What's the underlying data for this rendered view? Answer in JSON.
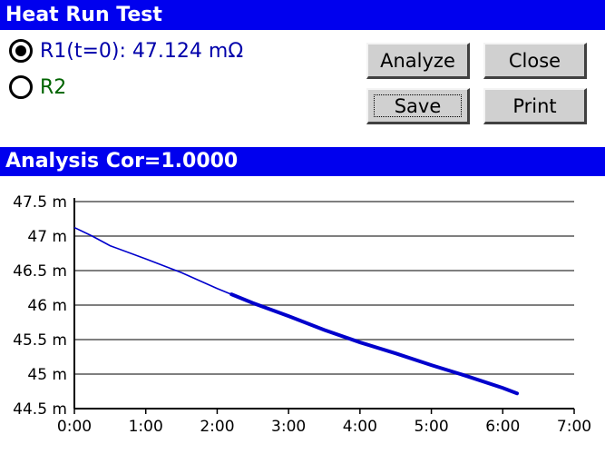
{
  "window": {
    "title": "Heat Run Test"
  },
  "options": [
    {
      "label": "R1(t=0): 47.124 mΩ",
      "selected": true,
      "color": "#0000aa"
    },
    {
      "label": "R2",
      "selected": false,
      "color": "#006400"
    }
  ],
  "buttons": {
    "analyze": "Analyze",
    "close": "Close",
    "save": "Save",
    "print": "Print"
  },
  "analysis": {
    "title": "Analysis Cor=1.0000"
  },
  "chart_data": {
    "type": "line",
    "title": "",
    "xlabel": "",
    "ylabel": "",
    "x_ticks": [
      "0:00",
      "1:00",
      "2:00",
      "3:00",
      "4:00",
      "5:00",
      "6:00",
      "7:00"
    ],
    "y_ticks": [
      "47.5 m",
      "47 m",
      "46.5 m",
      "46 m",
      "45.5 m",
      "45 m",
      "44.5 m"
    ],
    "xlim_minutes": [
      0,
      420
    ],
    "ylim_milliohm": [
      44.5,
      47.5
    ],
    "grid": "horizontal",
    "series": [
      {
        "color": "#0000cc",
        "x_minutes": [
          0,
          15,
          30,
          60,
          90,
          120,
          150,
          180,
          210,
          240,
          270,
          300,
          330,
          360,
          372
        ],
        "y_milliohm": [
          47.124,
          47.0,
          46.86,
          46.67,
          46.47,
          46.24,
          46.03,
          45.84,
          45.64,
          45.46,
          45.3,
          45.13,
          44.97,
          44.8,
          44.72
        ]
      }
    ],
    "marked_from_minutes": 132
  }
}
